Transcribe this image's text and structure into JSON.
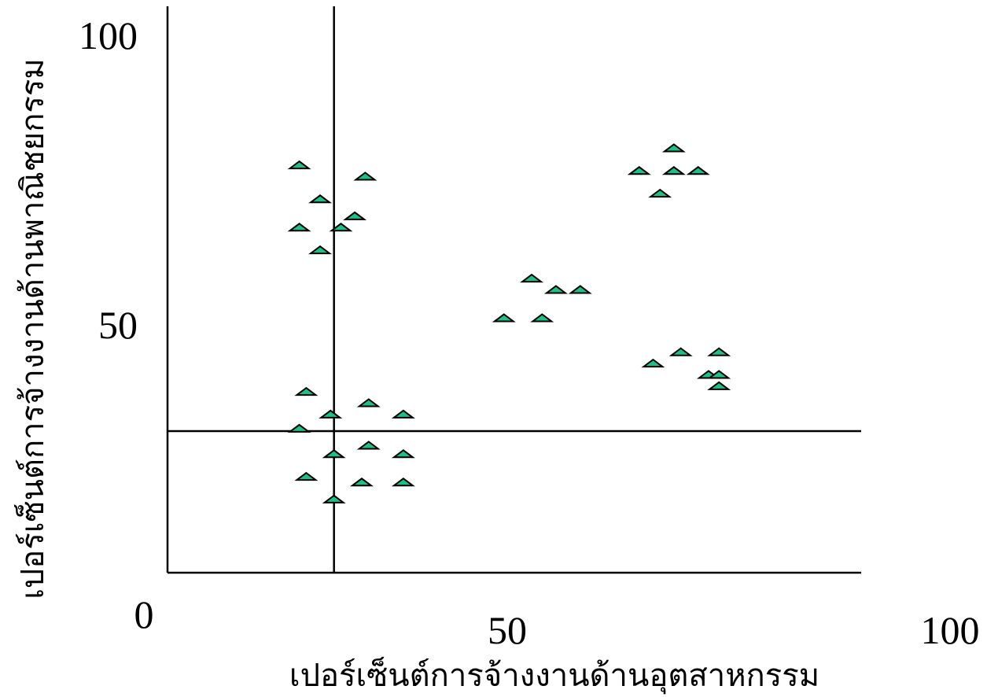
{
  "chart_data": {
    "type": "scatter",
    "title": "",
    "xlabel": "เปอร์เซ็นต์การจ้างงานด้านอุตสาหกรรม",
    "ylabel": "เปอร์เซ็นต์การจ้างงานด้านพาณิชยกรรม",
    "xlim": [
      0,
      100
    ],
    "ylim": [
      0,
      100
    ],
    "x_ticks": [
      "0",
      "50",
      "100"
    ],
    "y_ticks": [
      "100",
      "50"
    ],
    "grid": false,
    "marker": "triangle",
    "marker_color": "#1fbe8a",
    "reference_lines": {
      "x": 24,
      "y": 25
    },
    "points": [
      {
        "x": 19,
        "y": 72
      },
      {
        "x": 22,
        "y": 66
      },
      {
        "x": 19,
        "y": 61
      },
      {
        "x": 22,
        "y": 57
      },
      {
        "x": 25,
        "y": 61
      },
      {
        "x": 27,
        "y": 63
      },
      {
        "x": 28.5,
        "y": 70
      },
      {
        "x": 20,
        "y": 32
      },
      {
        "x": 23.5,
        "y": 28
      },
      {
        "x": 19,
        "y": 25.5
      },
      {
        "x": 29,
        "y": 30
      },
      {
        "x": 34,
        "y": 28
      },
      {
        "x": 24,
        "y": 21
      },
      {
        "x": 29,
        "y": 22.5
      },
      {
        "x": 34,
        "y": 21
      },
      {
        "x": 20,
        "y": 17
      },
      {
        "x": 28,
        "y": 16
      },
      {
        "x": 34,
        "y": 16
      },
      {
        "x": 24,
        "y": 13
      },
      {
        "x": 48.5,
        "y": 45
      },
      {
        "x": 52.5,
        "y": 52
      },
      {
        "x": 54,
        "y": 45
      },
      {
        "x": 56,
        "y": 50
      },
      {
        "x": 59.5,
        "y": 50
      },
      {
        "x": 68,
        "y": 71
      },
      {
        "x": 73,
        "y": 75
      },
      {
        "x": 73,
        "y": 71
      },
      {
        "x": 76.5,
        "y": 71
      },
      {
        "x": 71,
        "y": 67
      },
      {
        "x": 70,
        "y": 37
      },
      {
        "x": 74,
        "y": 39
      },
      {
        "x": 79.5,
        "y": 39
      },
      {
        "x": 78,
        "y": 35
      },
      {
        "x": 79.5,
        "y": 35
      },
      {
        "x": 79.5,
        "y": 33
      }
    ]
  }
}
